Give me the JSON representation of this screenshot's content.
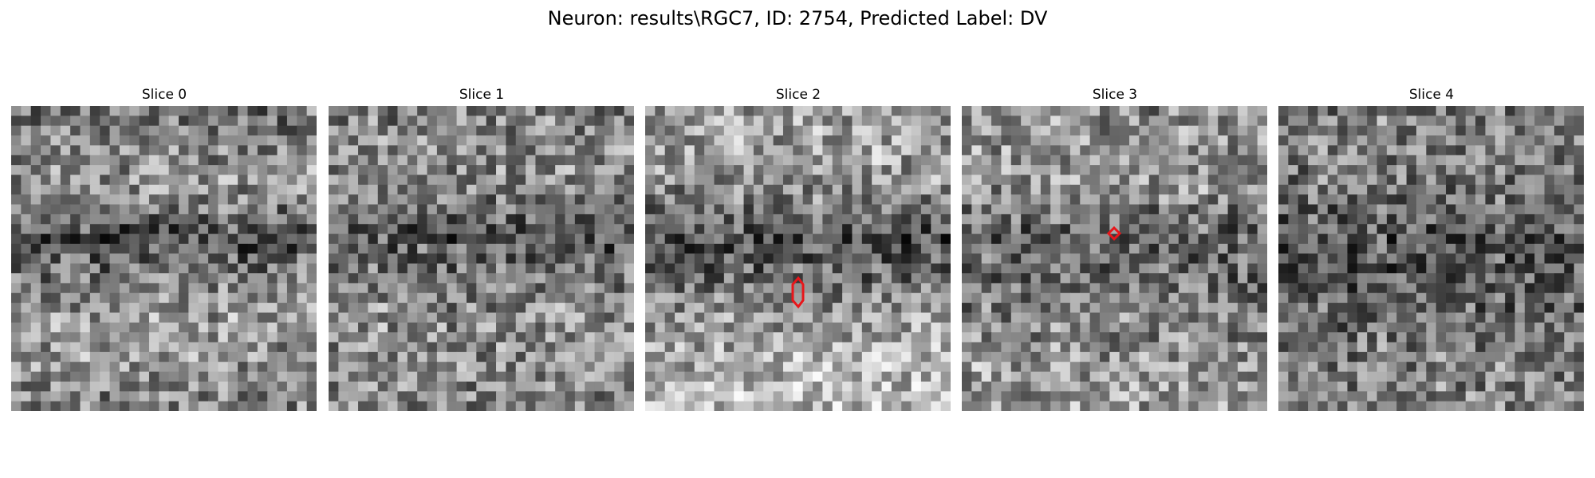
{
  "figure": {
    "title": "Neuron: results\\RGC7, ID: 2754, Predicted Label: DV"
  },
  "slices": [
    {
      "title": "Slice 0",
      "seed": 11,
      "trend": [
        0.46,
        0.55,
        0.58,
        0.3,
        0.48,
        0.62,
        0.6,
        0.5
      ],
      "contour": null
    },
    {
      "title": "Slice 1",
      "seed": 23,
      "trend": [
        0.5,
        0.56,
        0.52,
        0.34,
        0.48,
        0.57,
        0.56,
        0.52
      ],
      "contour": null
    },
    {
      "title": "Slice 2",
      "seed": 37,
      "trend": [
        0.62,
        0.64,
        0.52,
        0.32,
        0.44,
        0.62,
        0.7,
        0.72
      ],
      "contour": "hexagon"
    },
    {
      "title": "Slice 3",
      "seed": 41,
      "trend": [
        0.55,
        0.58,
        0.56,
        0.38,
        0.42,
        0.5,
        0.58,
        0.6
      ],
      "contour": "diamond"
    },
    {
      "title": "Slice 4",
      "seed": 53,
      "trend": [
        0.5,
        0.52,
        0.46,
        0.34,
        0.36,
        0.44,
        0.5,
        0.52
      ],
      "contour": null
    }
  ],
  "contour_color": "#e8161b"
}
